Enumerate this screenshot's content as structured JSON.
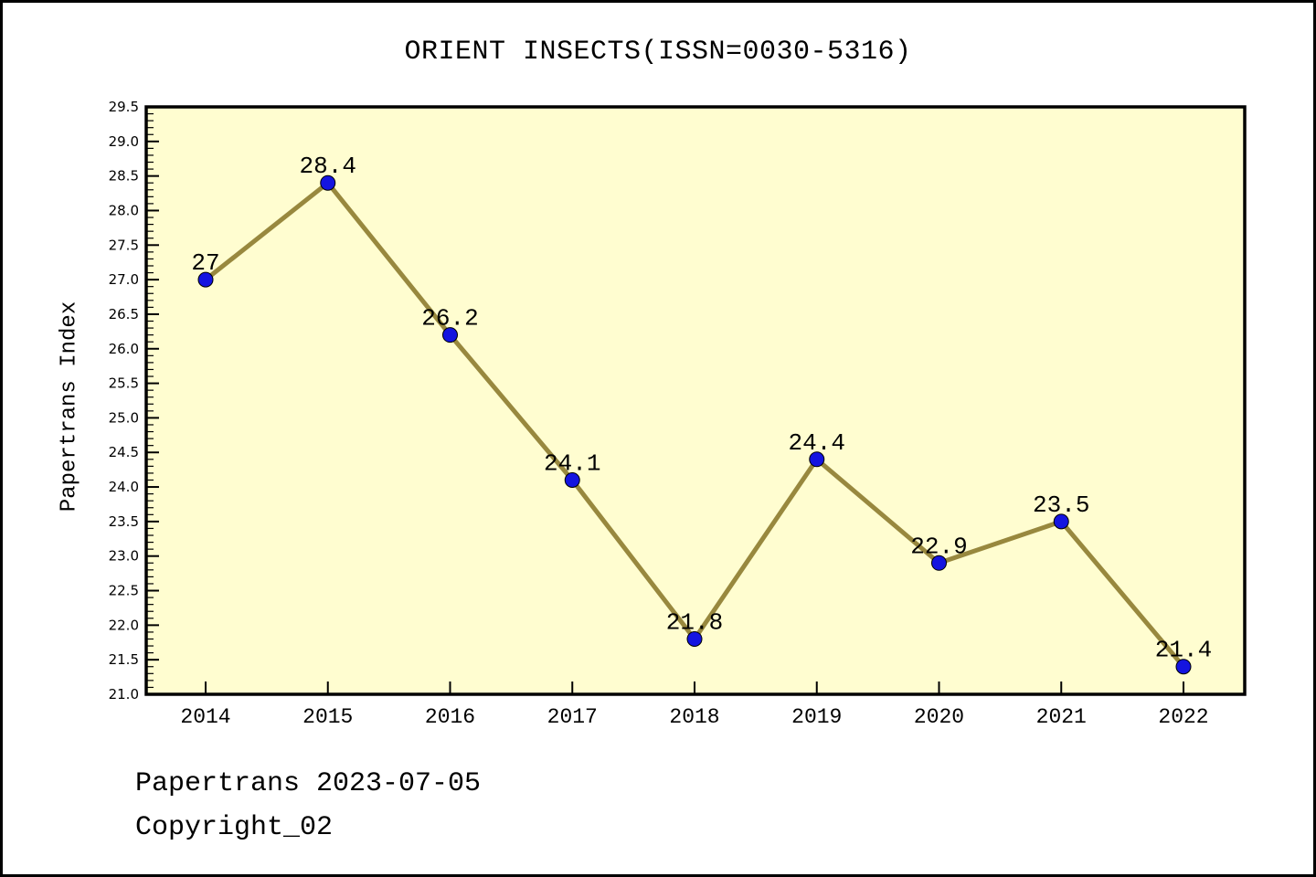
{
  "chart_data": {
    "type": "line",
    "title": "ORIENT INSECTS(ISSN=0030-5316)",
    "xlabel": "",
    "ylabel": "Papertrans Index",
    "x": [
      2014,
      2015,
      2016,
      2017,
      2018,
      2019,
      2020,
      2021,
      2022
    ],
    "x_tick_labels": [
      "2014",
      "2015",
      "2016",
      "2017",
      "2018",
      "2019",
      "2020",
      "2021",
      "2022"
    ],
    "series": [
      {
        "name": "Papertrans Index",
        "values": [
          27.0,
          28.4,
          26.2,
          24.1,
          21.8,
          24.4,
          22.9,
          23.5,
          21.4
        ]
      }
    ],
    "point_labels": [
      "27",
      "28.4",
      "26.2",
      "24.1",
      "21.8",
      "24.4",
      "22.9",
      "23.5",
      "21.4"
    ],
    "ylim": [
      21.0,
      29.5
    ],
    "ytick_labels": [
      "21.0",
      "21.5",
      "22.0",
      "22.5",
      "23.0",
      "23.5",
      "24.0",
      "24.5",
      "25.0",
      "25.5",
      "26.0",
      "26.5",
      "27.0",
      "27.5",
      "28.0",
      "28.5",
      "29.0",
      "29.5"
    ],
    "ytick_step": 0.5,
    "y_minor_step": 0.1,
    "grid": false,
    "legend": "none",
    "colors": {
      "line": "#98883E",
      "marker": "#1414E0",
      "marker_edge": "#000000",
      "plot_bg": "#FFFDD0",
      "text": "#000000",
      "page_bg": "#FFFFFF",
      "border": "#000000"
    },
    "footer": [
      "Papertrans 2023-07-05",
      "Copyright_02"
    ]
  }
}
